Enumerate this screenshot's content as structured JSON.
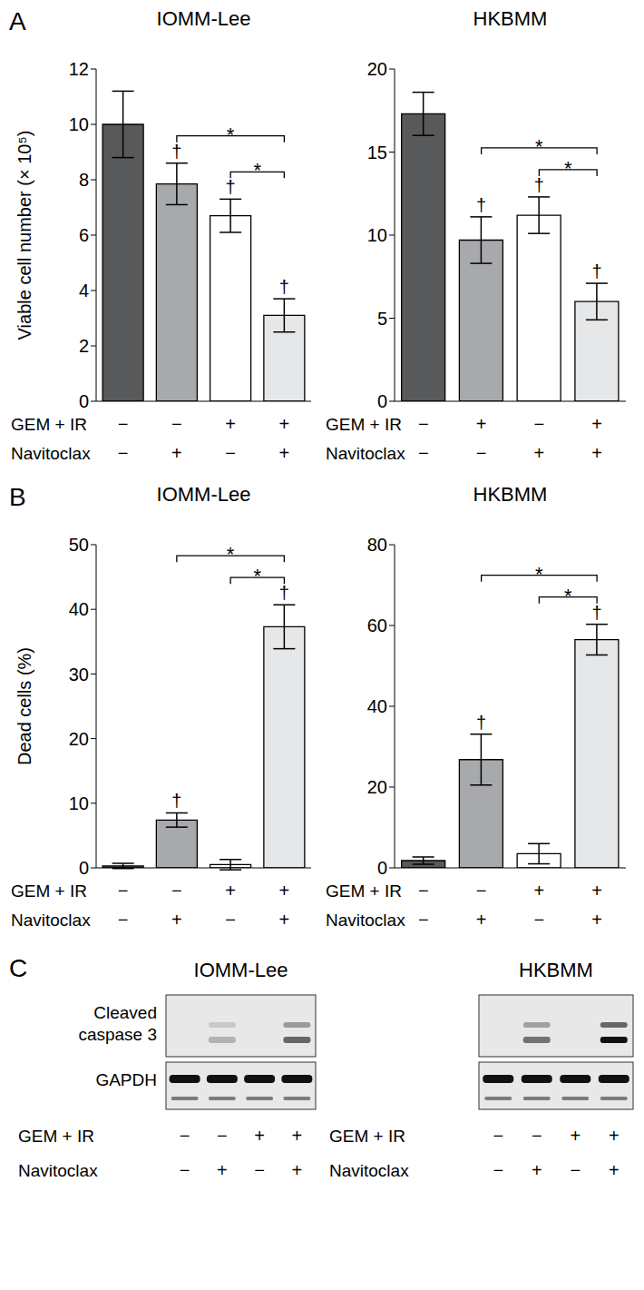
{
  "chart_data": [
    {
      "type": "bar",
      "panel_label": "A",
      "title": "IOMM-Lee",
      "y_label": "Viable cell number (× 10⁵)",
      "categories": [
        null,
        null,
        null,
        null
      ],
      "values": [
        10.0,
        7.85,
        6.7,
        3.1
      ],
      "errors": [
        1.2,
        0.75,
        0.6,
        0.6
      ],
      "colors": [
        "#58595b",
        "#a7a9ac",
        "#ffffff",
        "#e6e7e8"
      ],
      "ylim": [
        0,
        12
      ],
      "yticks": [
        0,
        2,
        4,
        6,
        8,
        10,
        12
      ],
      "conditions": [
        {
          "label": "GEM + IR",
          "signs": [
            "−",
            "−",
            "+",
            "+"
          ]
        },
        {
          "label": "Navitoclax",
          "signs": [
            "−",
            "+",
            "−",
            "+"
          ]
        }
      ],
      "significance_marks": [
        null,
        "†",
        "†",
        "†"
      ],
      "comparisons": [
        {
          "from": 1,
          "to": 3,
          "label": "*"
        },
        {
          "from": 2,
          "to": 3,
          "label": "*"
        }
      ]
    },
    {
      "type": "bar",
      "title": "HKBMM",
      "categories": [
        null,
        null,
        null,
        null
      ],
      "values": [
        17.3,
        9.7,
        11.2,
        6.0
      ],
      "errors": [
        1.3,
        1.4,
        1.1,
        1.1
      ],
      "colors": [
        "#58595b",
        "#a7a9ac",
        "#ffffff",
        "#e6e7e8"
      ],
      "ylim": [
        0,
        20
      ],
      "yticks": [
        0,
        5,
        10,
        15,
        20
      ],
      "conditions": [
        {
          "label": "GEM + IR",
          "signs": [
            "−",
            "+",
            "−",
            "+"
          ]
        },
        {
          "label": "Navitoclax",
          "signs": [
            "−",
            "−",
            "+",
            "+"
          ]
        }
      ],
      "significance_marks": [
        null,
        "†",
        "†",
        "†"
      ],
      "comparisons": [
        {
          "from": 1,
          "to": 3,
          "label": "*"
        },
        {
          "from": 2,
          "to": 3,
          "label": "*"
        }
      ]
    },
    {
      "type": "bar",
      "panel_label": "B",
      "title": "IOMM-Lee",
      "y_label": "Dead cells (%)",
      "categories": [
        null,
        null,
        null,
        null
      ],
      "values": [
        0.3,
        7.4,
        0.5,
        37.3
      ],
      "errors": [
        0.4,
        1.1,
        0.8,
        3.4
      ],
      "colors": [
        "#58595b",
        "#a7a9ac",
        "#ffffff",
        "#e6e7e8"
      ],
      "ylim": [
        0,
        50
      ],
      "yticks": [
        0,
        10,
        20,
        30,
        40,
        50
      ],
      "conditions": [
        {
          "label": "GEM + IR",
          "signs": [
            "−",
            "−",
            "+",
            "+"
          ]
        },
        {
          "label": "Navitoclax",
          "signs": [
            "−",
            "+",
            "−",
            "+"
          ]
        }
      ],
      "significance_marks": [
        null,
        "†",
        null,
        "†"
      ],
      "comparisons": [
        {
          "from": 1,
          "to": 3,
          "label": "*"
        },
        {
          "from": 2,
          "to": 3,
          "label": "*"
        }
      ]
    },
    {
      "type": "bar",
      "title": "HKBMM",
      "categories": [
        null,
        null,
        null,
        null
      ],
      "values": [
        1.8,
        26.8,
        3.5,
        56.5
      ],
      "errors": [
        0.9,
        6.3,
        2.5,
        3.8
      ],
      "colors": [
        "#58595b",
        "#a7a9ac",
        "#ffffff",
        "#e6e7e8"
      ],
      "ylim": [
        0,
        80
      ],
      "yticks": [
        0,
        20,
        40,
        60,
        80
      ],
      "conditions": [
        {
          "label": "GEM + IR",
          "signs": [
            "−",
            "−",
            "+",
            "+"
          ]
        },
        {
          "label": "Navitoclax",
          "signs": [
            "−",
            "+",
            "−",
            "+"
          ]
        }
      ],
      "significance_marks": [
        null,
        "†",
        null,
        "†"
      ],
      "comparisons": [
        {
          "from": 1,
          "to": 3,
          "label": "*"
        },
        {
          "from": 2,
          "to": 3,
          "label": "*"
        }
      ]
    }
  ],
  "blot": {
    "panel_label": "C",
    "row_labels": [
      "Cleaved caspase 3",
      "GAPDH"
    ],
    "conditions": [
      {
        "label": "GEM + IR",
        "signs": [
          "−",
          "−",
          "+",
          "+"
        ]
      },
      {
        "label": "Navitoclax",
        "signs": [
          "−",
          "+",
          "−",
          "+"
        ]
      }
    ],
    "cell_lines": [
      {
        "title": "IOMM-Lee",
        "intensities": [
          [
            0,
            0.25,
            0,
            0.6
          ],
          [
            1,
            1,
            1,
            1
          ]
        ]
      },
      {
        "title": "HKBMM",
        "intensities": [
          [
            0,
            0.55,
            0,
            1
          ],
          [
            1,
            1,
            1,
            1
          ]
        ]
      }
    ]
  }
}
